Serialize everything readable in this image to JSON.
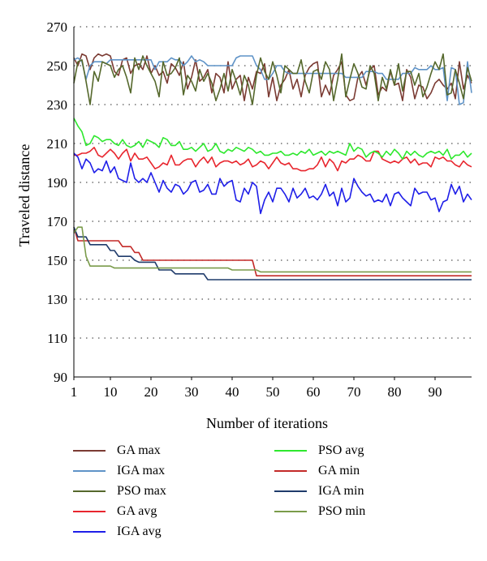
{
  "chart_data": {
    "type": "line",
    "title": "",
    "xlabel": "Number of iterations",
    "ylabel": "Traveled distance",
    "xlim": [
      1,
      99
    ],
    "ylim": [
      90,
      270
    ],
    "xticks": [
      1,
      10,
      20,
      30,
      40,
      50,
      60,
      70,
      80,
      90
    ],
    "yticks": [
      90,
      110,
      130,
      150,
      170,
      190,
      210,
      230,
      250,
      270
    ],
    "grid": "horizontal-dotted",
    "legend_position": "bottom",
    "x": [
      1,
      2,
      3,
      4,
      5,
      6,
      7,
      8,
      9,
      10,
      11,
      12,
      13,
      14,
      15,
      16,
      17,
      18,
      19,
      20,
      21,
      22,
      23,
      24,
      25,
      26,
      27,
      28,
      29,
      30,
      31,
      32,
      33,
      34,
      35,
      36,
      37,
      38,
      39,
      40,
      41,
      42,
      43,
      44,
      45,
      46,
      47,
      48,
      49,
      50,
      51,
      52,
      53,
      54,
      55,
      56,
      57,
      58,
      59,
      60,
      61,
      62,
      63,
      64,
      65,
      66,
      67,
      68,
      69,
      70,
      71,
      72,
      73,
      74,
      75,
      76,
      77,
      78,
      79,
      80,
      81,
      82,
      83,
      84,
      85,
      86,
      87,
      88,
      89,
      90,
      91,
      92,
      93,
      94,
      95,
      96,
      97,
      98,
      99
    ],
    "series": [
      {
        "name": "GA max",
        "color": "#7b3b33",
        "values": [
          254,
          250,
          256,
          255,
          248,
          254,
          256,
          255,
          256,
          255,
          247,
          245,
          253,
          254,
          246,
          250,
          251,
          248,
          255,
          246,
          250,
          245,
          247,
          241,
          251,
          249,
          245,
          252,
          238,
          244,
          253,
          242,
          244,
          248,
          236,
          246,
          244,
          236,
          252,
          238,
          243,
          245,
          232,
          244,
          238,
          247,
          246,
          251,
          234,
          244,
          232,
          240,
          243,
          248,
          238,
          243,
          234,
          245,
          249,
          251,
          252,
          234,
          240,
          235,
          245,
          248,
          252,
          235,
          232,
          233,
          244,
          247,
          240,
          248,
          250,
          235,
          239,
          237,
          247,
          240,
          241,
          232,
          248,
          244,
          233,
          240,
          239,
          233,
          236,
          241,
          243,
          240,
          238,
          241,
          233,
          252,
          238,
          245,
          241
        ]
      },
      {
        "name": "IGA max",
        "color": "#5f93c7",
        "values": [
          253,
          254,
          252,
          243,
          250,
          252,
          252,
          252,
          251,
          253,
          253,
          253,
          253,
          253,
          253,
          253,
          253,
          253,
          253,
          253,
          248,
          252,
          252,
          252,
          254,
          253,
          253,
          250,
          252,
          255,
          252,
          253,
          252,
          250,
          250,
          250,
          250,
          250,
          250,
          250,
          254,
          255,
          255,
          255,
          255,
          250,
          248,
          243,
          243,
          246,
          250,
          250,
          247,
          246,
          246,
          246,
          246,
          246,
          246,
          246,
          246,
          246,
          246,
          246,
          246,
          246,
          246,
          244,
          244,
          244,
          244,
          244,
          247,
          247,
          247,
          246,
          246,
          243,
          243,
          243,
          243,
          246,
          246,
          246,
          249,
          248,
          248,
          248,
          250,
          248,
          248,
          249,
          232,
          249,
          248,
          230,
          231,
          252,
          236
        ]
      },
      {
        "name": "PSO max",
        "color": "#55682c",
        "values": [
          241,
          252,
          253,
          242,
          230,
          247,
          242,
          252,
          251,
          250,
          244,
          248,
          250,
          244,
          236,
          254,
          248,
          255,
          250,
          246,
          242,
          234,
          252,
          245,
          246,
          249,
          254,
          235,
          245,
          242,
          237,
          248,
          242,
          246,
          241,
          232,
          238,
          246,
          237,
          248,
          242,
          235,
          245,
          240,
          230,
          245,
          254,
          247,
          243,
          252,
          245,
          236,
          250,
          248,
          246,
          246,
          253,
          242,
          236,
          247,
          248,
          243,
          252,
          248,
          232,
          243,
          256,
          234,
          243,
          251,
          246,
          239,
          238,
          250,
          246,
          232,
          244,
          238,
          248,
          240,
          251,
          237,
          247,
          247,
          240,
          246,
          234,
          239,
          246,
          252,
          248,
          256,
          235,
          236,
          248,
          241,
          233,
          249,
          242
        ]
      },
      {
        "name": "GA avg",
        "color": "#e8262e",
        "values": [
          204,
          204,
          205,
          205,
          206,
          208,
          204,
          203,
          205,
          207,
          205,
          202,
          205,
          207,
          201,
          205,
          202,
          202,
          203,
          200,
          197,
          198,
          200,
          199,
          204,
          199,
          199,
          201,
          202,
          202,
          198,
          201,
          203,
          200,
          203,
          198,
          200,
          201,
          201,
          200,
          201,
          199,
          200,
          202,
          198,
          199,
          201,
          200,
          197,
          200,
          203,
          200,
          199,
          200,
          197,
          197,
          196,
          196,
          197,
          197,
          199,
          203,
          198,
          202,
          200,
          196,
          201,
          200,
          202,
          202,
          204,
          203,
          201,
          201,
          206,
          206,
          202,
          201,
          200,
          201,
          200,
          202,
          203,
          200,
          202,
          199,
          200,
          200,
          198,
          203,
          202,
          203,
          201,
          201,
          199,
          198,
          201,
          199,
          198
        ]
      },
      {
        "name": "IGA avg",
        "color": "#1e1ee8",
        "values": [
          205,
          203,
          197,
          202,
          200,
          195,
          197,
          196,
          201,
          195,
          198,
          192,
          191,
          190,
          200,
          192,
          190,
          192,
          190,
          195,
          190,
          185,
          191,
          187,
          185,
          189,
          188,
          184,
          186,
          190,
          191,
          185,
          186,
          189,
          184,
          184,
          192,
          188,
          190,
          191,
          181,
          180,
          187,
          184,
          190,
          188,
          174,
          181,
          185,
          180,
          187,
          187,
          184,
          180,
          187,
          182,
          184,
          187,
          182,
          183,
          181,
          184,
          189,
          183,
          185,
          178,
          187,
          180,
          182,
          192,
          188,
          185,
          183,
          184,
          180,
          181,
          180,
          184,
          178,
          184,
          185,
          182,
          180,
          178,
          187,
          184,
          185,
          185,
          181,
          182,
          175,
          180,
          181,
          189,
          184,
          188,
          180,
          184,
          181
        ]
      },
      {
        "name": "PSO avg",
        "color": "#2ee82e",
        "values": [
          223,
          219,
          216,
          209,
          210,
          214,
          213,
          211,
          212,
          212,
          210,
          209,
          212,
          209,
          208,
          209,
          211,
          208,
          212,
          211,
          210,
          208,
          213,
          212,
          209,
          209,
          211,
          207,
          207,
          208,
          206,
          208,
          210,
          206,
          207,
          210,
          206,
          205,
          207,
          206,
          208,
          207,
          206,
          208,
          207,
          205,
          206,
          204,
          204,
          205,
          205,
          206,
          204,
          204,
          205,
          204,
          206,
          205,
          207,
          204,
          205,
          206,
          204,
          206,
          205,
          206,
          205,
          204,
          210,
          206,
          208,
          207,
          203,
          205,
          206,
          205,
          203,
          206,
          204,
          207,
          205,
          202,
          206,
          204,
          206,
          204,
          203,
          205,
          206,
          205,
          206,
          204,
          207,
          202,
          204,
          204,
          206,
          203,
          205
        ]
      },
      {
        "name": "GA min",
        "color": "#c32a28",
        "values": [
          167,
          160,
          160,
          160,
          160,
          160,
          160,
          160,
          160,
          160,
          160,
          160,
          157,
          157,
          157,
          154,
          154,
          150,
          150,
          150,
          150,
          150,
          150,
          150,
          150,
          150,
          150,
          150,
          150,
          150,
          150,
          150,
          150,
          150,
          150,
          150,
          150,
          150,
          150,
          150,
          150,
          150,
          150,
          150,
          150,
          142,
          142,
          142,
          142,
          142,
          142,
          142,
          142,
          142,
          142,
          142,
          142,
          142,
          142,
          142,
          142,
          142,
          142,
          142,
          142,
          142,
          142,
          142,
          142,
          142,
          142,
          142,
          142,
          142,
          142,
          142,
          142,
          142,
          142,
          142,
          142,
          142,
          142,
          142,
          142,
          142,
          142,
          142,
          142,
          142,
          142,
          142,
          142,
          142,
          142,
          142,
          142,
          142,
          142
        ]
      },
      {
        "name": "IGA min",
        "color": "#1f3b6b",
        "values": [
          167,
          162,
          162,
          162,
          158,
          158,
          158,
          158,
          158,
          155,
          155,
          152,
          152,
          152,
          152,
          150,
          149,
          149,
          149,
          149,
          149,
          145,
          145,
          145,
          145,
          143,
          143,
          143,
          143,
          143,
          143,
          143,
          143,
          140,
          140,
          140,
          140,
          140,
          140,
          140,
          140,
          140,
          140,
          140,
          140,
          140,
          140,
          140,
          140,
          140,
          140,
          140,
          140,
          140,
          140,
          140,
          140,
          140,
          140,
          140,
          140,
          140,
          140,
          140,
          140,
          140,
          140,
          140,
          140,
          140,
          140,
          140,
          140,
          140,
          140,
          140,
          140,
          140,
          140,
          140,
          140,
          140,
          140,
          140,
          140,
          140,
          140,
          140,
          140,
          140,
          140,
          140,
          140,
          140,
          140,
          140,
          140,
          140,
          140
        ]
      },
      {
        "name": "PSO min",
        "color": "#7a9b4a",
        "values": [
          164,
          167,
          167,
          152,
          147,
          147,
          147,
          147,
          147,
          147,
          146,
          146,
          146,
          146,
          146,
          146,
          146,
          146,
          146,
          146,
          146,
          146,
          146,
          146,
          146,
          146,
          146,
          146,
          146,
          146,
          146,
          146,
          146,
          146,
          146,
          146,
          146,
          146,
          146,
          145,
          145,
          145,
          145,
          145,
          145,
          145,
          144,
          144,
          144,
          144,
          144,
          144,
          144,
          144,
          144,
          144,
          144,
          144,
          144,
          144,
          144,
          144,
          144,
          144,
          144,
          144,
          144,
          144,
          144,
          144,
          144,
          144,
          144,
          144,
          144,
          144,
          144,
          144,
          144,
          144,
          144,
          144,
          144,
          144,
          144,
          144,
          144,
          144,
          144,
          144,
          144,
          144,
          144,
          144,
          144,
          144,
          144,
          144,
          144
        ]
      }
    ]
  }
}
